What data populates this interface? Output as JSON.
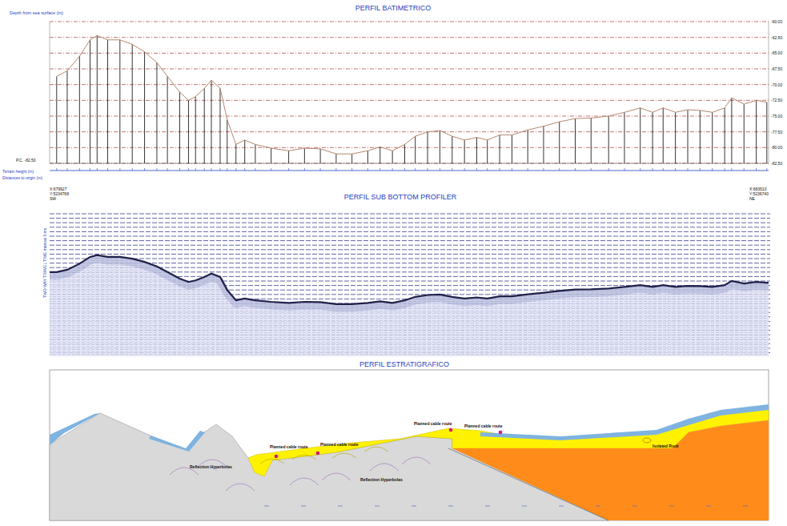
{
  "chart_data": {
    "type": "line",
    "title": "PERFIL BATIMETRICO",
    "y_label": "Depth from sea surface (m)",
    "x": [
      40,
      100,
      170,
      230,
      270,
      330,
      400,
      470,
      540,
      610,
      670,
      740,
      790,
      830,
      880,
      920,
      970,
      1010,
      1060,
      1110,
      1170,
      1260,
      1360,
      1450,
      1540,
      1630,
      1720,
      1810,
      1880,
      1950,
      2020,
      2080,
      2150,
      2220,
      2290,
      2360,
      2430,
      2490,
      2560,
      2630,
      2720,
      2810,
      2900,
      2990,
      3080,
      3180,
      3270,
      3360,
      3430,
      3490,
      3560,
      3630,
      3700,
      3770,
      3840,
      3880,
      3950,
      4020,
      4080
    ],
    "series": [
      {
        "color": "#b4876b",
        "marker": "stem",
        "values": [
          -68.7,
          -67.8,
          -65.5,
          -62.9,
          -62.2,
          -62.9,
          -62.9,
          -63.6,
          -64.8,
          -66.5,
          -68.7,
          -71.2,
          -72.5,
          -71.9,
          -70.6,
          -69.3,
          -70.6,
          -75.6,
          -79.5,
          -78.8,
          -79.5,
          -80.1,
          -80.5,
          -80.1,
          -80.2,
          -81.0,
          -81.0,
          -80.5,
          -79.9,
          -80.5,
          -79.5,
          -78.2,
          -77.5,
          -77.3,
          -78.2,
          -78.8,
          -78.4,
          -78.8,
          -78.0,
          -78.0,
          -77.2,
          -76.6,
          -75.9,
          -75.4,
          -75.3,
          -75.0,
          -74.4,
          -73.7,
          -74.4,
          -73.7,
          -74.4,
          -74.0,
          -74.1,
          -74.4,
          -73.7,
          -72.1,
          -73.1,
          -72.5,
          -72.8
        ]
      }
    ],
    "xlim": [
      0,
      4090
    ],
    "ylim": [
      -82.5,
      -60
    ],
    "yticks": [
      {
        "value": -60,
        "label": "-60.00"
      },
      {
        "value": -62.5,
        "label": "-62.50"
      },
      {
        "value": -65,
        "label": "-65.00"
      },
      {
        "value": -67.5,
        "label": "-67.50"
      },
      {
        "value": -70,
        "label": "-70.00"
      },
      {
        "value": -72.5,
        "label": "-72.50"
      },
      {
        "value": -75,
        "label": "-75.00"
      },
      {
        "value": -77.5,
        "label": "-77.50"
      },
      {
        "value": -80,
        "label": "-80.00"
      },
      {
        "value": -82.5,
        "label": "-82.50"
      }
    ],
    "grid": true,
    "tick_labels": "y"
  },
  "labels": {
    "terrain_height": "Terrain height (m)",
    "distances": "Distances to origin (m)",
    "reference": "P.C. -82.50"
  },
  "endpoints": {
    "start": {
      "x": "X:679927",
      "y": "Y:5234768",
      "dir": "SW"
    },
    "end": {
      "x": "X:683510",
      "y": "Y:5236740",
      "dir": "NE"
    }
  },
  "sub_bottom_profile": {
    "title": "PERFIL SUB BOTTOM PROFILER",
    "y_label": "TWO WAY TRAVEL TIME Interval 5 ms"
  },
  "stratigraphic_profile": {
    "title": "PERFIL ESTRATIGRAFICO",
    "annotations": [
      "Reflection Hyperbolas",
      "Planned cable route",
      "Planned cable route",
      "Reflection Hyperbolas",
      "Planned cable route",
      "Planned cable route",
      "Isolated Rock"
    ]
  }
}
